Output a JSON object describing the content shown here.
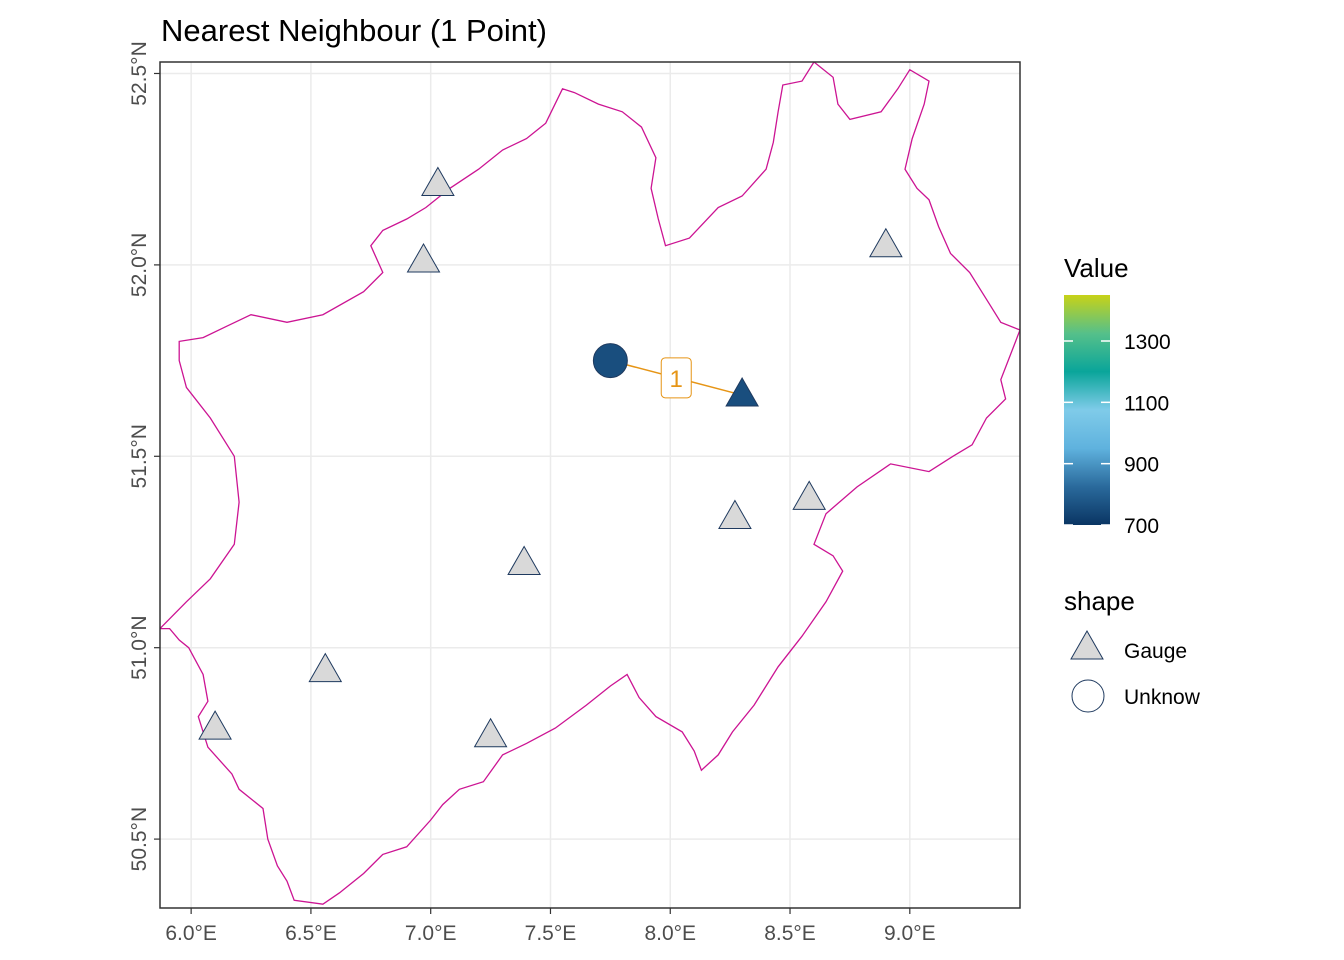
{
  "title": "Nearest Neighbour (1 Point)",
  "map": {
    "lon_range": [
      5.87,
      9.46
    ],
    "lat_range": [
      50.32,
      52.53
    ],
    "x_ticks": [
      {
        "value": 6.0,
        "label": "6.0°E"
      },
      {
        "value": 6.5,
        "label": "6.5°E"
      },
      {
        "value": 7.0,
        "label": "7.0°E"
      },
      {
        "value": 7.5,
        "label": "7.5°E"
      },
      {
        "value": 8.0,
        "label": "8.0°E"
      },
      {
        "value": 8.5,
        "label": "8.5°E"
      },
      {
        "value": 9.0,
        "label": "9.0°E"
      }
    ],
    "y_ticks": [
      {
        "value": 50.5,
        "label": "50.5°N"
      },
      {
        "value": 51.0,
        "label": "51.0°N"
      },
      {
        "value": 51.5,
        "label": "51.5°N"
      },
      {
        "value": 52.0,
        "label": "52.0°N"
      },
      {
        "value": 52.5,
        "label": "52.5°N"
      }
    ],
    "grid": true,
    "boundary_color": "#cc1493",
    "boundary": [
      [
        5.87,
        51.05
      ],
      [
        5.91,
        51.05
      ],
      [
        5.95,
        51.02
      ],
      [
        5.99,
        51.0
      ],
      [
        6.05,
        50.93
      ],
      [
        6.07,
        50.86
      ],
      [
        6.03,
        50.82
      ],
      [
        6.07,
        50.74
      ],
      [
        6.17,
        50.67
      ],
      [
        6.2,
        50.63
      ],
      [
        6.3,
        50.58
      ],
      [
        6.32,
        50.5
      ],
      [
        6.36,
        50.43
      ],
      [
        6.4,
        50.39
      ],
      [
        6.43,
        50.34
      ],
      [
        6.55,
        50.33
      ],
      [
        6.62,
        50.36
      ],
      [
        6.72,
        50.41
      ],
      [
        6.8,
        50.46
      ],
      [
        6.9,
        50.48
      ],
      [
        7.0,
        50.55
      ],
      [
        7.05,
        50.59
      ],
      [
        7.12,
        50.63
      ],
      [
        7.22,
        50.65
      ],
      [
        7.3,
        50.72
      ],
      [
        7.4,
        50.75
      ],
      [
        7.52,
        50.79
      ],
      [
        7.65,
        50.85
      ],
      [
        7.75,
        50.9
      ],
      [
        7.82,
        50.93
      ],
      [
        7.87,
        50.87
      ],
      [
        7.94,
        50.82
      ],
      [
        8.05,
        50.78
      ],
      [
        8.1,
        50.73
      ],
      [
        8.13,
        50.68
      ],
      [
        8.2,
        50.72
      ],
      [
        8.26,
        50.78
      ],
      [
        8.35,
        50.85
      ],
      [
        8.45,
        50.95
      ],
      [
        8.55,
        51.03
      ],
      [
        8.65,
        51.12
      ],
      [
        8.72,
        51.2
      ],
      [
        8.68,
        51.24
      ],
      [
        8.6,
        51.27
      ],
      [
        8.65,
        51.35
      ],
      [
        8.78,
        51.42
      ],
      [
        8.92,
        51.48
      ],
      [
        9.08,
        51.46
      ],
      [
        9.18,
        51.5
      ],
      [
        9.26,
        51.53
      ],
      [
        9.32,
        51.6
      ],
      [
        9.4,
        51.65
      ],
      [
        9.38,
        51.7
      ],
      [
        9.46,
        51.83
      ],
      [
        9.38,
        51.85
      ],
      [
        9.33,
        51.9
      ],
      [
        9.25,
        51.98
      ],
      [
        9.17,
        52.03
      ],
      [
        9.12,
        52.1
      ],
      [
        9.08,
        52.17
      ],
      [
        9.03,
        52.2
      ],
      [
        8.98,
        52.25
      ],
      [
        9.01,
        52.33
      ],
      [
        9.06,
        52.42
      ],
      [
        9.08,
        52.48
      ],
      [
        9.0,
        52.51
      ],
      [
        8.95,
        52.46
      ],
      [
        8.88,
        52.4
      ],
      [
        8.75,
        52.38
      ],
      [
        8.7,
        52.42
      ],
      [
        8.68,
        52.49
      ],
      [
        8.6,
        52.53
      ],
      [
        8.55,
        52.48
      ],
      [
        8.47,
        52.47
      ],
      [
        8.45,
        52.4
      ],
      [
        8.43,
        52.32
      ],
      [
        8.4,
        52.25
      ],
      [
        8.3,
        52.18
      ],
      [
        8.2,
        52.15
      ],
      [
        8.08,
        52.07
      ],
      [
        7.98,
        52.05
      ],
      [
        7.95,
        52.12
      ],
      [
        7.92,
        52.2
      ],
      [
        7.94,
        52.28
      ],
      [
        7.88,
        52.36
      ],
      [
        7.8,
        52.4
      ],
      [
        7.7,
        52.42
      ],
      [
        7.6,
        52.45
      ],
      [
        7.55,
        52.46
      ],
      [
        7.48,
        52.37
      ],
      [
        7.4,
        52.33
      ],
      [
        7.3,
        52.3
      ],
      [
        7.2,
        52.25
      ],
      [
        7.08,
        52.2
      ],
      [
        6.98,
        52.15
      ],
      [
        6.9,
        52.12
      ],
      [
        6.8,
        52.09
      ],
      [
        6.75,
        52.05
      ],
      [
        6.8,
        51.98
      ],
      [
        6.72,
        51.93
      ],
      [
        6.55,
        51.87
      ],
      [
        6.4,
        51.85
      ],
      [
        6.25,
        51.87
      ],
      [
        6.15,
        51.84
      ],
      [
        6.05,
        51.81
      ],
      [
        5.95,
        51.8
      ],
      [
        5.95,
        51.75
      ],
      [
        5.98,
        51.68
      ],
      [
        6.08,
        51.6
      ],
      [
        6.18,
        51.5
      ],
      [
        6.2,
        51.38
      ],
      [
        6.18,
        51.27
      ],
      [
        6.08,
        51.18
      ],
      [
        5.98,
        51.12
      ],
      [
        5.87,
        51.05
      ]
    ]
  },
  "gauges": [
    {
      "lon": 7.03,
      "lat": 52.21,
      "value": null
    },
    {
      "lon": 6.97,
      "lat": 52.01,
      "value": null
    },
    {
      "lon": 8.9,
      "lat": 52.05,
      "value": null
    },
    {
      "lon": 8.3,
      "lat": 51.66,
      "value": 760
    },
    {
      "lon": 8.58,
      "lat": 51.39,
      "value": null
    },
    {
      "lon": 8.27,
      "lat": 51.34,
      "value": null
    },
    {
      "lon": 7.39,
      "lat": 51.22,
      "value": null
    },
    {
      "lon": 6.56,
      "lat": 50.94,
      "value": null
    },
    {
      "lon": 6.1,
      "lat": 50.79,
      "value": null
    },
    {
      "lon": 7.25,
      "lat": 50.77,
      "value": null
    }
  ],
  "unknown_point": {
    "lon": 7.75,
    "lat": 51.75,
    "value": 760
  },
  "connection": {
    "label": "1",
    "color": "#e69516"
  },
  "colors": {
    "na_fill": "#d9d9d9",
    "outline": "#1f3a5f",
    "gradient": [
      "#0a3563",
      "#2a6a9c",
      "#5fb2de",
      "#7fcbe9",
      "#0aa59a",
      "#55c08a",
      "#c7d218"
    ]
  },
  "legend": {
    "value_title": "Value",
    "value_range": [
      700,
      1450
    ],
    "value_ticks": [
      {
        "value": 700,
        "label": "700"
      },
      {
        "value": 900,
        "label": "900"
      },
      {
        "value": 1100,
        "label": "1100"
      },
      {
        "value": 1300,
        "label": "1300"
      }
    ],
    "shape_title": "shape",
    "shape_items": [
      {
        "shape": "triangle",
        "label": "Gauge"
      },
      {
        "shape": "circle",
        "label": "Unknow"
      }
    ]
  }
}
